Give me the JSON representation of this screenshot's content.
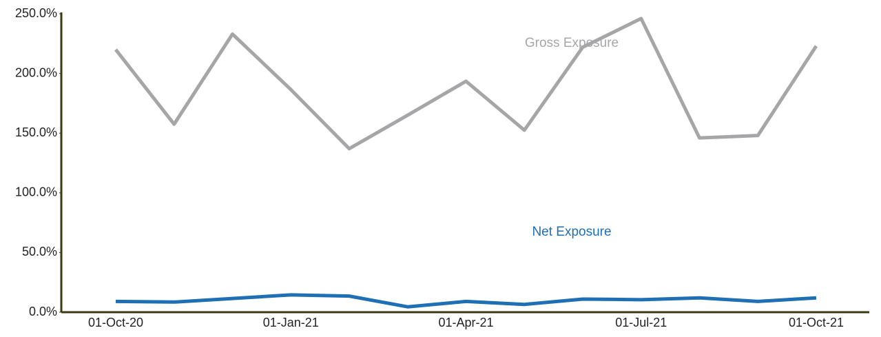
{
  "chart_data": {
    "type": "line",
    "categories": [
      "01-Oct-20",
      null,
      null,
      "01-Jan-21",
      null,
      null,
      "01-Apr-21",
      null,
      null,
      "01-Jul-21",
      null,
      null,
      "01-Oct-21"
    ],
    "series": [
      {
        "name": "Gross Exposure",
        "color": "#a6a6a8",
        "values": [
          220,
          157.5,
          233,
          186.5,
          137,
          165,
          193.5,
          152.5,
          222,
          246,
          146,
          148,
          223
        ]
      },
      {
        "name": "Net Exposure",
        "color": "#1f6fb5",
        "values": [
          9,
          8.5,
          11.5,
          14.5,
          13.5,
          4.5,
          9,
          6.5,
          11,
          10.5,
          12,
          9,
          12
        ]
      }
    ],
    "ylim": [
      0,
      250
    ],
    "yticks": [
      {
        "value": 0,
        "label": "0.0%"
      },
      {
        "value": 50,
        "label": "50.0%"
      },
      {
        "value": 100,
        "label": "100.0%"
      },
      {
        "value": 150,
        "label": "150.0%"
      },
      {
        "value": 200,
        "label": "200.0%"
      },
      {
        "value": 250,
        "label": "250.0%"
      }
    ],
    "grid": false
  }
}
